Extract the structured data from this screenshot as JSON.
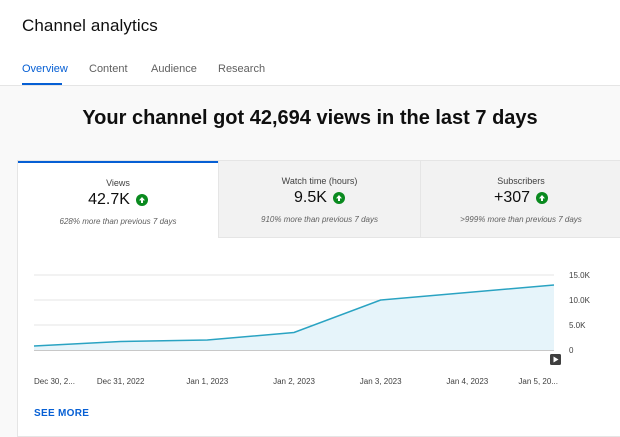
{
  "page_title": "Channel analytics",
  "tabs": [
    {
      "label": "Overview",
      "active": true
    },
    {
      "label": "Content",
      "active": false
    },
    {
      "label": "Audience",
      "active": false
    },
    {
      "label": "Research",
      "active": false
    }
  ],
  "headline": "Your channel got 42,694 views in the last 7 days",
  "metrics": [
    {
      "label": "Views",
      "value": "42.7K",
      "change": "628% more than previous 7 days",
      "selected": true
    },
    {
      "label": "Watch time (hours)",
      "value": "9.5K",
      "change": "910% more than previous 7 days",
      "selected": false
    },
    {
      "label": "Subscribers",
      "value": "+307",
      "change": ">999% more than previous 7 days",
      "selected": false
    }
  ],
  "see_more": "SEE MORE",
  "colors": {
    "accent": "#065fd4",
    "line": "#2aa3c2",
    "area": "#e6f4fa",
    "up": "#0a8a1f"
  },
  "icons": {
    "trend": "arrow-up-icon",
    "play": "play-icon"
  },
  "chart_data": {
    "type": "area",
    "x": [
      "Dec 30, 2...",
      "Dec 31, 2022",
      "Jan 1, 2023",
      "Jan 2, 2023",
      "Jan 3, 2023",
      "Jan 4, 2023",
      "Jan 5, 20..."
    ],
    "series": [
      {
        "values": [
          800,
          1700,
          2000,
          3500,
          10000,
          11500,
          13000
        ]
      }
    ],
    "yticks": [
      "15.0K",
      "10.0K",
      "5.0K",
      "0"
    ],
    "ylim": [
      0,
      15000
    ],
    "grid": true
  }
}
